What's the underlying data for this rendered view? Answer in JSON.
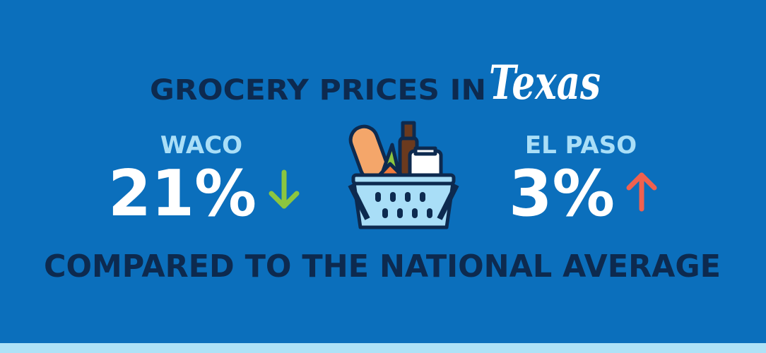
{
  "header": {
    "title": "GROCERY PRICES IN",
    "script": "Texas"
  },
  "cities": [
    {
      "name": "WACO",
      "change": "21%"
    },
    {
      "name": "EL PASO",
      "change": "3%"
    }
  ],
  "footer": {
    "text": "COMPARED TO THE NATIONAL AVERAGE"
  }
}
